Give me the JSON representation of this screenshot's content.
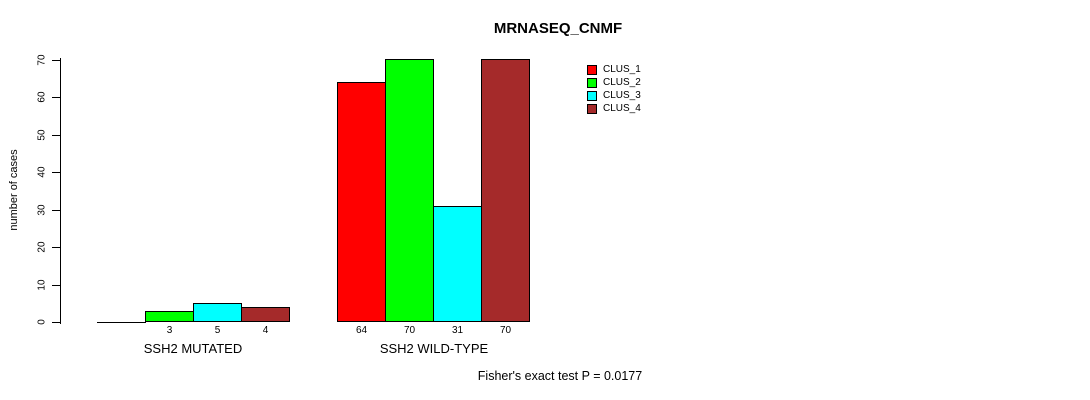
{
  "chart_data": {
    "type": "bar",
    "title": "MRNASEQ_CNMF",
    "ylabel": "number of cases",
    "xlabel": "",
    "ylim": [
      0,
      70
    ],
    "yticks": [
      0,
      10,
      20,
      30,
      40,
      50,
      60,
      70
    ],
    "grid": false,
    "legend_position": "top-right",
    "categories": [
      "SSH2 MUTATED",
      "SSH2 WILD-TYPE"
    ],
    "series": [
      {
        "name": "CLUS_1",
        "color": "#FF0000",
        "values": [
          0,
          64
        ]
      },
      {
        "name": "CLUS_2",
        "color": "#00FF00",
        "values": [
          3,
          70
        ]
      },
      {
        "name": "CLUS_3",
        "color": "#00FFFF",
        "values": [
          5,
          31
        ]
      },
      {
        "name": "CLUS_4",
        "color": "#A52A2A",
        "values": [
          4,
          70
        ]
      }
    ],
    "bar_value_labels": [
      [
        "",
        "3",
        "5",
        "4"
      ],
      [
        "64",
        "70",
        "31",
        "70"
      ]
    ],
    "annotation": "Fisher's exact test P = 0.0177"
  },
  "colors": {
    "background": "#FFFFFF",
    "axis": "#000000",
    "clus_1": "#FF0000",
    "clus_2": "#00FF00",
    "clus_3": "#00FFFF",
    "clus_4": "#A52A2A"
  }
}
